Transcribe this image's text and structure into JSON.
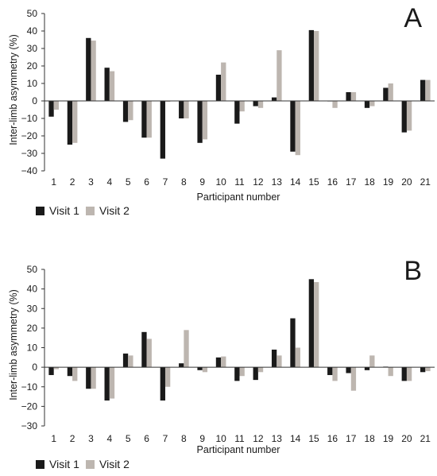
{
  "colors": {
    "visit1": "#1a1a1a",
    "visit2": "#bdb6b0",
    "axis": "#333333"
  },
  "chart_data": [
    {
      "type": "bar",
      "panel_label": "A",
      "xlabel": "Participant number",
      "ylabel": "Inter-limb asymmetry (%)",
      "ylim": [
        -40,
        50
      ],
      "yticks": [
        -40,
        -30,
        -20,
        -10,
        0,
        10,
        20,
        30,
        40,
        50
      ],
      "categories": [
        "1",
        "2",
        "3",
        "4",
        "5",
        "6",
        "7",
        "8",
        "9",
        "10",
        "11",
        "12",
        "13",
        "14",
        "15",
        "16",
        "17",
        "18",
        "19",
        "20",
        "21"
      ],
      "series": [
        {
          "name": "Visit 1",
          "values": [
            -9,
            -25,
            36,
            19,
            -12,
            -21,
            -33,
            -10,
            -24,
            15,
            -13,
            -3,
            2,
            -29,
            40.5,
            0,
            5,
            -4,
            7.5,
            -18,
            12
          ]
        },
        {
          "name": "Visit 2",
          "values": [
            -5,
            -24,
            34.5,
            17,
            -11,
            -21,
            -0.5,
            -10,
            -22,
            22,
            -6,
            -4,
            29,
            -31,
            40,
            -4,
            5,
            -3,
            10,
            -17,
            12
          ]
        }
      ],
      "legend": {
        "placement": "bottom-left"
      },
      "grid": false
    },
    {
      "type": "bar",
      "panel_label": "B",
      "xlabel": "Participant number",
      "ylabel": "Inter-limb asymmetry (%)",
      "ylim": [
        -30,
        50
      ],
      "yticks": [
        -30,
        -20,
        -10,
        0,
        10,
        20,
        30,
        40,
        50
      ],
      "categories": [
        "1",
        "2",
        "3",
        "4",
        "5",
        "6",
        "7",
        "8",
        "9",
        "10",
        "11",
        "12",
        "13",
        "14",
        "15",
        "16",
        "17",
        "18",
        "19",
        "20",
        "21"
      ],
      "series": [
        {
          "name": "Visit 1",
          "values": [
            -4,
            -4.5,
            -11,
            -17,
            7,
            18,
            -17,
            2,
            -1.5,
            5,
            -7,
            -6.5,
            9,
            25,
            45,
            -4,
            -3,
            -1.5,
            0.3,
            -7,
            -2.5
          ]
        },
        {
          "name": "Visit 2",
          "values": [
            -1,
            -7,
            -11,
            -16,
            6,
            14.5,
            -10,
            19,
            -2.5,
            5.5,
            -4.5,
            -2.5,
            6,
            10,
            43.5,
            -7,
            -12,
            6,
            -4.5,
            -7,
            -2
          ]
        }
      ],
      "legend": {
        "placement": "bottom-left"
      },
      "grid": false
    }
  ]
}
